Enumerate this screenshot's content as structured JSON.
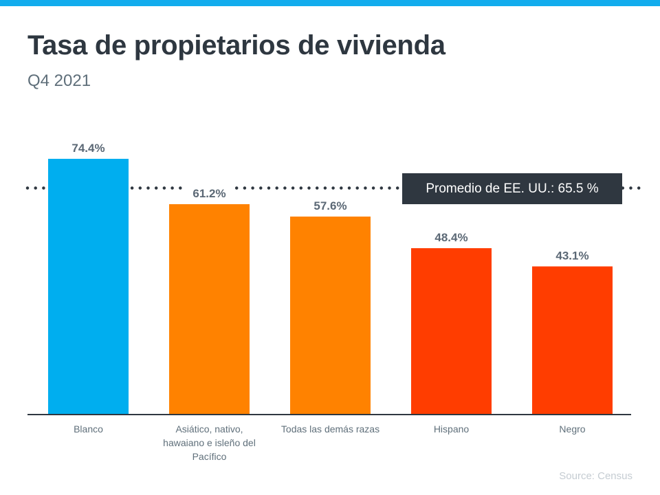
{
  "header": {
    "title": "Tasa de propietarios de vivienda",
    "subtitle": "Q4 2021"
  },
  "average": {
    "label": "Promedio de EE. UU.: 65.5 %",
    "value": 65.5
  },
  "source": "Source: Census",
  "chart_data": {
    "type": "bar",
    "title": "Tasa de propietarios de vivienda",
    "subtitle": "Q4 2021",
    "xlabel": "",
    "ylabel": "",
    "categories": [
      "Blanco",
      "Asiático, nativo, hawaiano e isleño del Pacífico",
      "Todas las demás razas",
      "Hispano",
      "Negro"
    ],
    "values": [
      74.4,
      61.2,
      57.6,
      48.4,
      43.1
    ],
    "data_labels": [
      "74.4%",
      "61.2%",
      "57.6%",
      "48.4%",
      "43.1%"
    ],
    "colors": [
      "#00aeef",
      "#ff8200",
      "#ff8200",
      "#ff3d00",
      "#ff3d00"
    ],
    "reference_line": {
      "label": "Promedio de EE. UU.: 65.5 %",
      "value": 65.5,
      "style": "dotted",
      "color": "#2f3740"
    },
    "ylim": [
      0,
      100
    ],
    "grid": false,
    "legend": "none"
  }
}
